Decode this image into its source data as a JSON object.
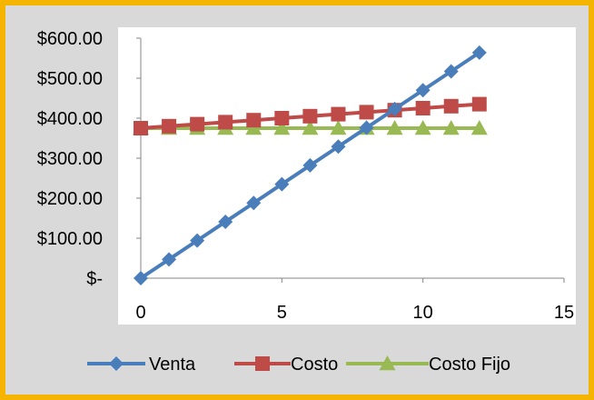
{
  "chart_data": {
    "type": "scatter",
    "title": "",
    "xlabel": "",
    "ylabel": "",
    "xlim": [
      0,
      15
    ],
    "ylim": [
      0,
      600
    ],
    "x_ticks": [
      "0",
      "5",
      "10",
      "15"
    ],
    "y_ticks": [
      "$-",
      "$100.00",
      "$200.00",
      "$300.00",
      "$400.00",
      "$500.00",
      "$600.00"
    ],
    "grid": false,
    "legend_position": "bottom",
    "x": [
      0,
      1,
      2,
      3,
      4,
      5,
      6,
      7,
      8,
      9,
      10,
      11,
      12
    ],
    "series": [
      {
        "name": "Venta",
        "marker": "diamond",
        "color": "#4a7ebb",
        "values": [
          0,
          47,
          94,
          141,
          188,
          235,
          282,
          329,
          376,
          423,
          470,
          517,
          564
        ]
      },
      {
        "name": "Costo",
        "marker": "square",
        "color": "#be4b48",
        "values": [
          375,
          380,
          385,
          390,
          395,
          400,
          405,
          410,
          415,
          420,
          425,
          430,
          435
        ]
      },
      {
        "name": "Costo Fijo",
        "marker": "triangle",
        "color": "#98b954",
        "values": [
          375,
          375,
          375,
          375,
          375,
          375,
          375,
          375,
          375,
          375,
          375,
          375,
          375
        ]
      }
    ]
  },
  "colors": {
    "frame_border": "#f5b400",
    "background": "#d9d9d9",
    "plot_background": "#ffffff"
  }
}
